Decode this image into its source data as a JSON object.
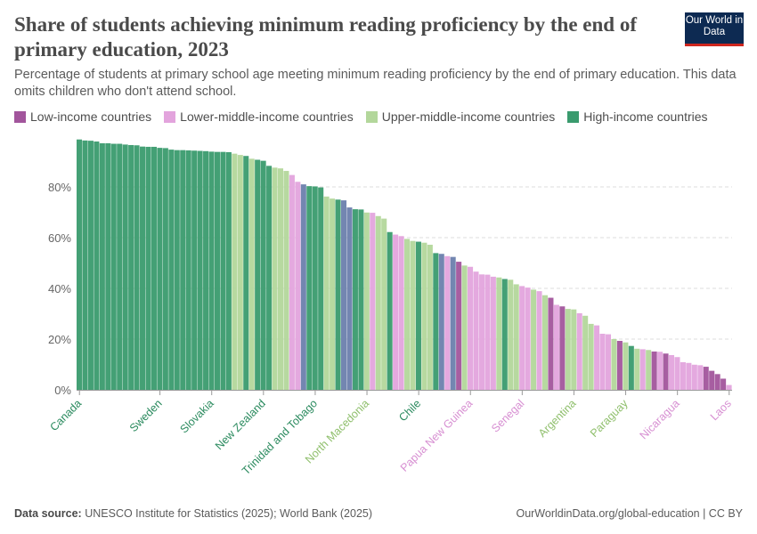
{
  "header": {
    "title": "Share of students achieving minimum reading proficiency by the end of primary education, 2023",
    "subtitle": "Percentage of students at primary school age meeting minimum reading proficiency by the end of primary education. This data omits children who don't attend school.",
    "logo": "Our World in Data"
  },
  "footer": {
    "source_label": "Data source:",
    "source": "UNESCO Institute for Statistics (2025); World Bank (2025)",
    "url": "OurWorldinData.org/global-education | CC BY"
  },
  "chart_data": {
    "type": "bar",
    "title": "Share of students achieving minimum reading proficiency by the end of primary education, 2023",
    "ylim": [
      0,
      100
    ],
    "y_ticks": [
      0,
      20,
      40,
      60,
      80
    ],
    "y_tick_format": "%",
    "grid": "horizontal dashed",
    "legend_position": "top",
    "legend": [
      {
        "key": "L",
        "label": "Low-income countries",
        "color": "#a2559c"
      },
      {
        "key": "LM",
        "label": "Lower-middle-income countries",
        "color": "#e3a4dd"
      },
      {
        "key": "UM",
        "label": "Upper-middle-income countries",
        "color": "#b3d79b"
      },
      {
        "key": "H",
        "label": "High-income countries",
        "color": "#3a9b6e"
      }
    ],
    "extra_colors": {
      "X": "#6b80ad"
    },
    "label_colors": {
      "H": "#2a8a5e",
      "UM": "#8fbf6c",
      "LM": "#d78fd2",
      "L": "#a2559c"
    },
    "values": [
      98.7,
      98.3,
      98.2,
      97.9,
      97.2,
      97.2,
      97.0,
      97.0,
      96.7,
      96.5,
      96.4,
      95.9,
      95.8,
      95.8,
      95.4,
      95.3,
      94.7,
      94.5,
      94.5,
      94.4,
      94.3,
      94.2,
      94.1,
      93.9,
      93.8,
      93.8,
      93.7,
      93.1,
      92.6,
      92.2,
      91.1,
      90.7,
      90.3,
      88.3,
      87.6,
      87.3,
      86.3,
      84.7,
      82.0,
      81.0,
      80.3,
      80.2,
      79.8,
      76.2,
      75.4,
      75.0,
      74.7,
      71.9,
      71.2,
      71.1,
      69.9,
      69.8,
      68.5,
      67.5,
      62.2,
      61.2,
      60.6,
      59.5,
      58.7,
      58.4,
      58.0,
      57.2,
      53.9,
      53.6,
      52.7,
      52.4,
      50.5,
      49.0,
      48.5,
      46.6,
      45.5,
      45.4,
      44.6,
      44.3,
      43.7,
      43.4,
      41.6,
      40.9,
      40.3,
      39.5,
      38.9,
      37.3,
      36.3,
      33.5,
      32.9,
      31.9,
      31.7,
      30.2,
      29.2,
      26.0,
      25.4,
      22.1,
      21.9,
      20.0,
      19.3,
      18.7,
      17.3,
      16.2,
      16.0,
      15.7,
      15.1,
      15.0,
      14.3,
      13.7,
      12.9,
      10.9,
      10.6,
      9.9,
      9.7,
      9.1,
      7.5,
      6.2,
      4.4,
      1.9
    ],
    "groups": [
      "H",
      "H",
      "H",
      "H",
      "H",
      "H",
      "H",
      "H",
      "H",
      "H",
      "H",
      "H",
      "H",
      "H",
      "H",
      "H",
      "H",
      "H",
      "H",
      "H",
      "H",
      "H",
      "H",
      "H",
      "H",
      "H",
      "H",
      "UM",
      "UM",
      "H",
      "UM",
      "H",
      "H",
      "H",
      "UM",
      "UM",
      "UM",
      "LM",
      "LM",
      "X",
      "H",
      "H",
      "H",
      "UM",
      "UM",
      "H",
      "X",
      "X",
      "H",
      "H",
      "UM",
      "LM",
      "UM",
      "UM",
      "H",
      "LM",
      "LM",
      "UM",
      "UM",
      "H",
      "UM",
      "UM",
      "H",
      "X",
      "LM",
      "X",
      "L",
      "UM",
      "LM",
      "LM",
      "LM",
      "LM",
      "LM",
      "UM",
      "H",
      "UM",
      "UM",
      "LM",
      "LM",
      "UM",
      "LM",
      "UM",
      "L",
      "LM",
      "L",
      "UM",
      "UM",
      "LM",
      "UM",
      "UM",
      "LM",
      "LM",
      "LM",
      "UM",
      "L",
      "UM",
      "H",
      "UM",
      "LM",
      "UM",
      "L",
      "LM",
      "L",
      "LM",
      "LM",
      "LM",
      "LM",
      "LM",
      "LM",
      "L",
      "L",
      "L",
      "L",
      "LM"
    ],
    "labeled_bars": [
      {
        "index": 0,
        "label": "Canada"
      },
      {
        "index": 14,
        "label": "Sweden"
      },
      {
        "index": 23,
        "label": "Slovakia"
      },
      {
        "index": 32,
        "label": "New Zealand"
      },
      {
        "index": 41,
        "label": "Trinidad and Tobago"
      },
      {
        "index": 50,
        "label": "North Macedonia"
      },
      {
        "index": 59,
        "label": "Chile"
      },
      {
        "index": 68,
        "label": "Papua New Guinea"
      },
      {
        "index": 77,
        "label": "Senegal"
      },
      {
        "index": 86,
        "label": "Argentina"
      },
      {
        "index": 95,
        "label": "Paraguay"
      },
      {
        "index": 104,
        "label": "Nicaragua"
      },
      {
        "index": 113,
        "label": "Laos"
      }
    ]
  }
}
